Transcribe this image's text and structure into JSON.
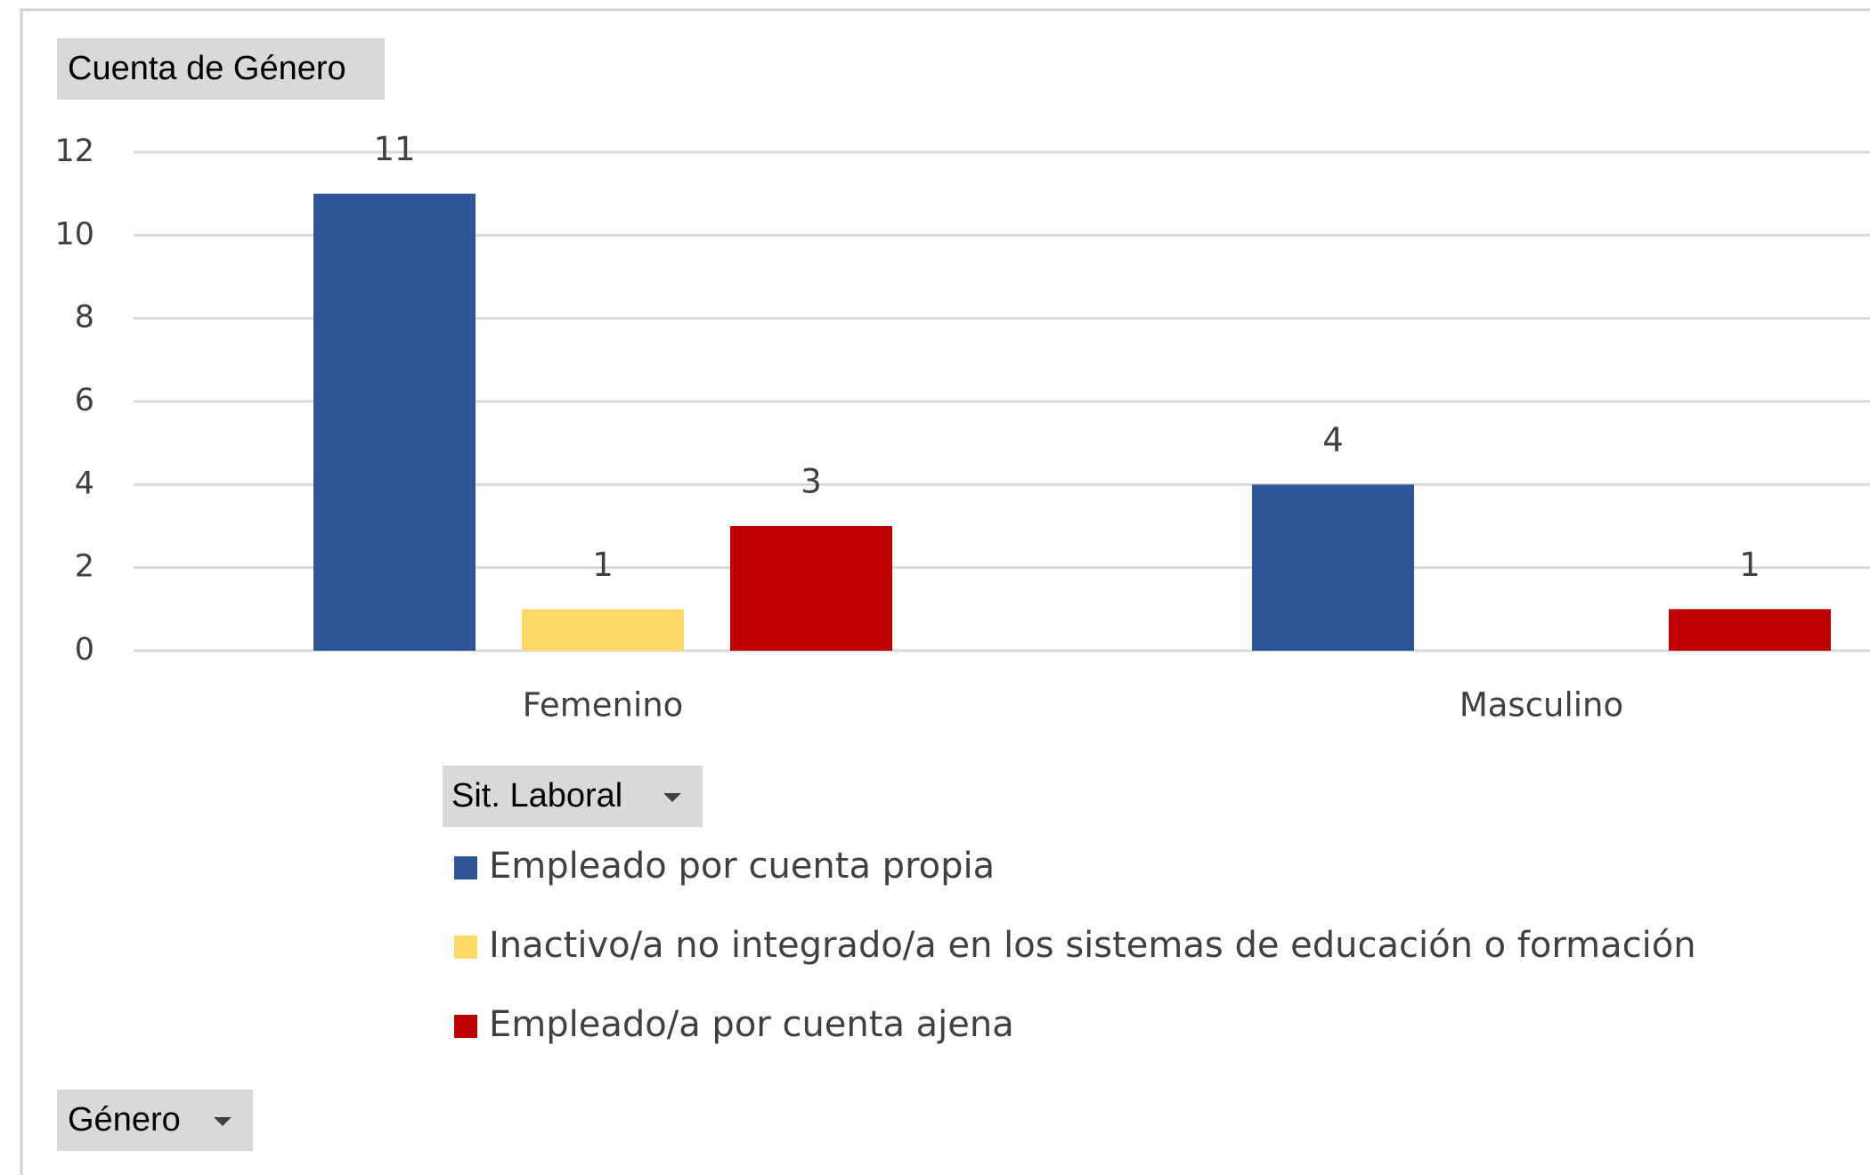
{
  "chart_data": {
    "type": "bar",
    "pivot_buttons": {
      "values": "Cuenta de Género",
      "legend": "Sit. Laboral",
      "axis": "Género"
    },
    "categories": [
      "Femenino",
      "Masculino"
    ],
    "series": [
      {
        "name": "Empleado por cuenta propia",
        "color": "#2f5597",
        "values": [
          11,
          4
        ]
      },
      {
        "name": "Inactivo/a no integrado/a en los sistemas de educación o formación",
        "color": "#ffd966",
        "values": [
          1,
          null
        ]
      },
      {
        "name": "Empleado/a por cuenta ajena",
        "color": "#c00000",
        "values": [
          3,
          1
        ]
      }
    ],
    "ylim": [
      0,
      12
    ],
    "yticks": [
      0,
      2,
      4,
      6,
      8,
      10,
      12
    ],
    "grid": true,
    "legend": "bottom"
  }
}
